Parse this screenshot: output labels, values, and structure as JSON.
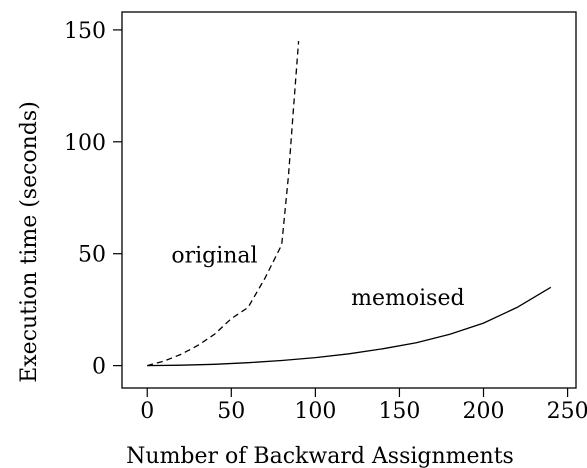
{
  "chart_data": {
    "type": "line",
    "title": "",
    "xlabel": "Number of Backward Assignments",
    "ylabel": "Execution time (seconds)",
    "xlim": [
      -15,
      255
    ],
    "ylim": [
      -10,
      158
    ],
    "xticks": [
      0,
      50,
      100,
      150,
      200,
      250
    ],
    "yticks": [
      0,
      50,
      100,
      150
    ],
    "grid": false,
    "legend": "none",
    "series": [
      {
        "name": "original",
        "style": "dashed",
        "color": "#000000",
        "x": [
          0,
          10,
          20,
          30,
          40,
          50,
          60,
          70,
          80,
          84,
          87,
          90
        ],
        "y": [
          0,
          2,
          5,
          9,
          14,
          21,
          26,
          39,
          54,
          85,
          115,
          145
        ]
      },
      {
        "name": "memoised",
        "style": "solid",
        "color": "#000000",
        "x": [
          0,
          20,
          40,
          60,
          80,
          100,
          120,
          140,
          160,
          180,
          200,
          220,
          240
        ],
        "y": [
          0,
          0.2,
          0.6,
          1.3,
          2.3,
          3.6,
          5.3,
          7.5,
          10.2,
          14,
          19,
          26,
          35
        ]
      }
    ],
    "annotations": [
      {
        "text": "original",
        "x": 40,
        "y": 46,
        "series": "original"
      },
      {
        "text": "memoised",
        "x": 155,
        "y": 27,
        "series": "memoised"
      }
    ]
  }
}
